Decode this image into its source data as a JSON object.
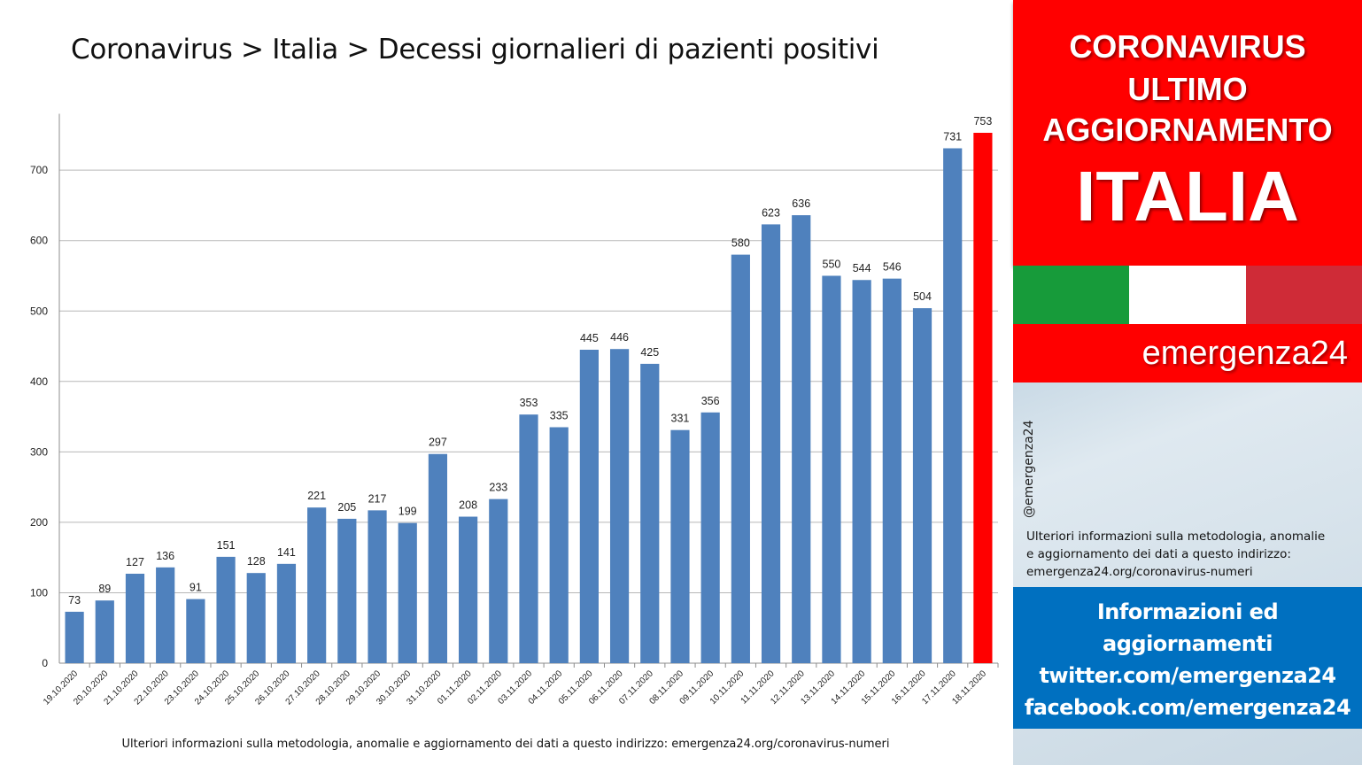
{
  "chart_data": {
    "type": "bar",
    "title": "Coronavirus > Italia > Decessi giornalieri di pazienti positivi",
    "xlabel": "",
    "ylabel": "",
    "ylim": [
      0,
      780
    ],
    "yticks": [
      0,
      100,
      200,
      300,
      400,
      500,
      600,
      700
    ],
    "grid": true,
    "categories": [
      "19.10.2020",
      "20.10.2020",
      "21.10.2020",
      "22.10.2020",
      "23.10.2020",
      "24.10.2020",
      "25.10.2020",
      "26.10.2020",
      "27.10.2020",
      "28.10.2020",
      "29.10.2020",
      "30.10.2020",
      "31.10.2020",
      "01.11.2020",
      "02.11.2020",
      "03.11.2020",
      "04.11.2020",
      "05.11.2020",
      "06.11.2020",
      "07.11.2020",
      "08.11.2020",
      "09.11.2020",
      "10.11.2020",
      "11.11.2020",
      "12.11.2020",
      "13.11.2020",
      "14.11.2020",
      "15.11.2020",
      "16.11.2020",
      "17.11.2020",
      "18.11.2020"
    ],
    "values": [
      73,
      89,
      127,
      136,
      91,
      151,
      128,
      141,
      221,
      205,
      217,
      199,
      297,
      208,
      233,
      353,
      335,
      445,
      446,
      425,
      331,
      356,
      580,
      623,
      636,
      550,
      544,
      546,
      504,
      731,
      753
    ],
    "bar_color": "#4f81bd",
    "highlight_color": "#ff0000",
    "highlight_index": 30
  },
  "footnote": "Ulteriori informazioni sulla metodologia, anomalie e aggiornamento dei dati a questo indirizzo: emergenza24.org/coronavirus-numeri",
  "side_panel": {
    "promo_lines": [
      "CORONAVIRUS",
      "ULTIMO",
      "AGGIORNAMENTO"
    ],
    "country": "ITALIA",
    "brand": "emergenza24",
    "handle": "@emergenza24",
    "note_lines": [
      "Ulteriori informazioni sulla metodologia, anomalie",
      "e aggiornamento dei dati a questo indirizzo:",
      "emergenza24.org/coronavirus-numeri"
    ],
    "info_lines": [
      "Informazioni ed",
      "aggiornamenti",
      "twitter.com/emergenza24",
      "facebook.com/emergenza24"
    ],
    "flag_colors": [
      "#179b3a",
      "#ffffff",
      "#cf2b37"
    ]
  }
}
